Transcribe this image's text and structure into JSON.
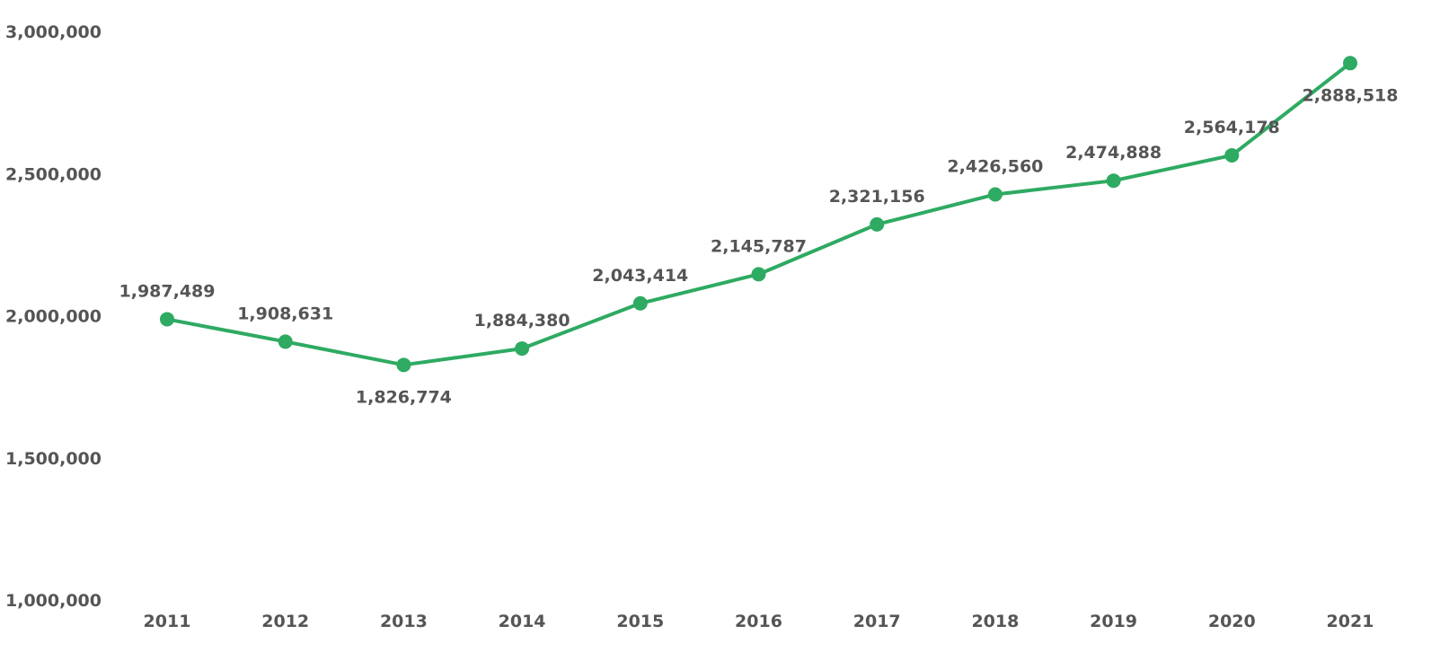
{
  "chart_data": {
    "type": "line",
    "title": "",
    "xlabel": "",
    "ylabel": "",
    "x": [
      "2011",
      "2012",
      "2013",
      "2014",
      "2015",
      "2016",
      "2017",
      "2018",
      "2019",
      "2020",
      "2021"
    ],
    "series": [
      {
        "values": [
          1987489,
          1908631,
          1826774,
          1884380,
          2043414,
          2145787,
          2321156,
          2426560,
          2474888,
          2564178,
          2888518
        ],
        "labels": [
          "1,987,489",
          "1,908,631",
          "1,826,774",
          "1,884,380",
          "2,043,414",
          "2,145,787",
          "2,321,156",
          "2,426,560",
          "2,474,888",
          "2,564,178",
          "2,888,518"
        ],
        "color": "#2eaa62"
      }
    ],
    "ylim": [
      1000000,
      3000000
    ],
    "y_ticks": [
      1000000,
      1500000,
      2000000,
      2500000,
      3000000
    ],
    "y_tick_labels": [
      "1,000,000",
      "1,500,000",
      "2,000,000",
      "2,500,000",
      "3,000,000"
    ],
    "grid": false,
    "legend": "none",
    "label_color": "#555555"
  }
}
